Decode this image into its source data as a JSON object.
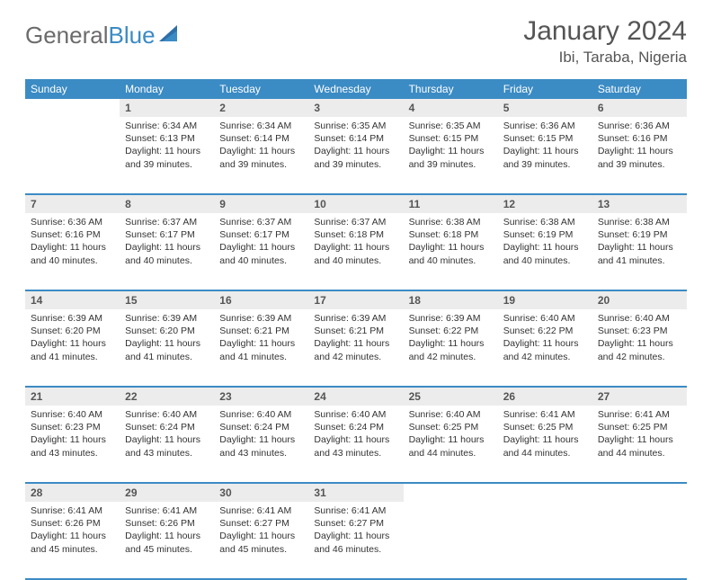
{
  "brand": {
    "part1": "General",
    "part2": "Blue"
  },
  "title": "January 2024",
  "location": "Ibi, Taraba, Nigeria",
  "colors": {
    "header_bg": "#3b8bc4",
    "header_text": "#ffffff",
    "daynum_bg": "#ececec",
    "daynum_text": "#555555",
    "cell_text": "#333333",
    "rule": "#3b8bc4",
    "logo_gray": "#6b6b6b",
    "logo_blue": "#3b8bc4"
  },
  "daysOfWeek": [
    "Sunday",
    "Monday",
    "Tuesday",
    "Wednesday",
    "Thursday",
    "Friday",
    "Saturday"
  ],
  "weeks": [
    [
      null,
      {
        "n": "1",
        "sr": "6:34 AM",
        "ss": "6:13 PM",
        "dl": "11 hours and 39 minutes."
      },
      {
        "n": "2",
        "sr": "6:34 AM",
        "ss": "6:14 PM",
        "dl": "11 hours and 39 minutes."
      },
      {
        "n": "3",
        "sr": "6:35 AM",
        "ss": "6:14 PM",
        "dl": "11 hours and 39 minutes."
      },
      {
        "n": "4",
        "sr": "6:35 AM",
        "ss": "6:15 PM",
        "dl": "11 hours and 39 minutes."
      },
      {
        "n": "5",
        "sr": "6:36 AM",
        "ss": "6:15 PM",
        "dl": "11 hours and 39 minutes."
      },
      {
        "n": "6",
        "sr": "6:36 AM",
        "ss": "6:16 PM",
        "dl": "11 hours and 39 minutes."
      }
    ],
    [
      {
        "n": "7",
        "sr": "6:36 AM",
        "ss": "6:16 PM",
        "dl": "11 hours and 40 minutes."
      },
      {
        "n": "8",
        "sr": "6:37 AM",
        "ss": "6:17 PM",
        "dl": "11 hours and 40 minutes."
      },
      {
        "n": "9",
        "sr": "6:37 AM",
        "ss": "6:17 PM",
        "dl": "11 hours and 40 minutes."
      },
      {
        "n": "10",
        "sr": "6:37 AM",
        "ss": "6:18 PM",
        "dl": "11 hours and 40 minutes."
      },
      {
        "n": "11",
        "sr": "6:38 AM",
        "ss": "6:18 PM",
        "dl": "11 hours and 40 minutes."
      },
      {
        "n": "12",
        "sr": "6:38 AM",
        "ss": "6:19 PM",
        "dl": "11 hours and 40 minutes."
      },
      {
        "n": "13",
        "sr": "6:38 AM",
        "ss": "6:19 PM",
        "dl": "11 hours and 41 minutes."
      }
    ],
    [
      {
        "n": "14",
        "sr": "6:39 AM",
        "ss": "6:20 PM",
        "dl": "11 hours and 41 minutes."
      },
      {
        "n": "15",
        "sr": "6:39 AM",
        "ss": "6:20 PM",
        "dl": "11 hours and 41 minutes."
      },
      {
        "n": "16",
        "sr": "6:39 AM",
        "ss": "6:21 PM",
        "dl": "11 hours and 41 minutes."
      },
      {
        "n": "17",
        "sr": "6:39 AM",
        "ss": "6:21 PM",
        "dl": "11 hours and 42 minutes."
      },
      {
        "n": "18",
        "sr": "6:39 AM",
        "ss": "6:22 PM",
        "dl": "11 hours and 42 minutes."
      },
      {
        "n": "19",
        "sr": "6:40 AM",
        "ss": "6:22 PM",
        "dl": "11 hours and 42 minutes."
      },
      {
        "n": "20",
        "sr": "6:40 AM",
        "ss": "6:23 PM",
        "dl": "11 hours and 42 minutes."
      }
    ],
    [
      {
        "n": "21",
        "sr": "6:40 AM",
        "ss": "6:23 PM",
        "dl": "11 hours and 43 minutes."
      },
      {
        "n": "22",
        "sr": "6:40 AM",
        "ss": "6:24 PM",
        "dl": "11 hours and 43 minutes."
      },
      {
        "n": "23",
        "sr": "6:40 AM",
        "ss": "6:24 PM",
        "dl": "11 hours and 43 minutes."
      },
      {
        "n": "24",
        "sr": "6:40 AM",
        "ss": "6:24 PM",
        "dl": "11 hours and 43 minutes."
      },
      {
        "n": "25",
        "sr": "6:40 AM",
        "ss": "6:25 PM",
        "dl": "11 hours and 44 minutes."
      },
      {
        "n": "26",
        "sr": "6:41 AM",
        "ss": "6:25 PM",
        "dl": "11 hours and 44 minutes."
      },
      {
        "n": "27",
        "sr": "6:41 AM",
        "ss": "6:25 PM",
        "dl": "11 hours and 44 minutes."
      }
    ],
    [
      {
        "n": "28",
        "sr": "6:41 AM",
        "ss": "6:26 PM",
        "dl": "11 hours and 45 minutes."
      },
      {
        "n": "29",
        "sr": "6:41 AM",
        "ss": "6:26 PM",
        "dl": "11 hours and 45 minutes."
      },
      {
        "n": "30",
        "sr": "6:41 AM",
        "ss": "6:27 PM",
        "dl": "11 hours and 45 minutes."
      },
      {
        "n": "31",
        "sr": "6:41 AM",
        "ss": "6:27 PM",
        "dl": "11 hours and 46 minutes."
      },
      null,
      null,
      null
    ]
  ],
  "labels": {
    "sunrise": "Sunrise:",
    "sunset": "Sunset:",
    "daylight": "Daylight:"
  }
}
